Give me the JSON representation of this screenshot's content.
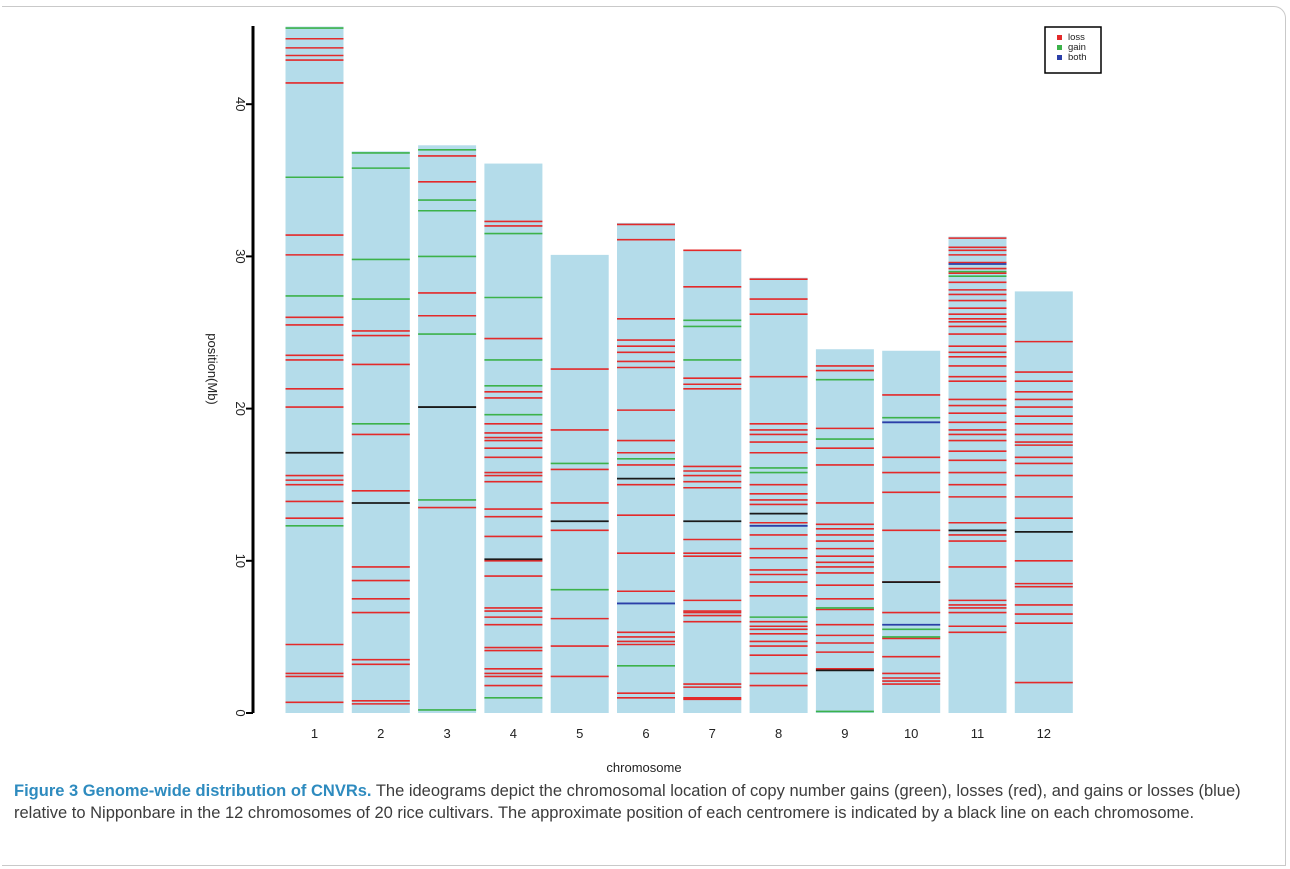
{
  "chart_data": {
    "type": "ideogram",
    "categories": [
      "1",
      "2",
      "3",
      "4",
      "5",
      "6",
      "7",
      "8",
      "9",
      "10",
      "11",
      "12"
    ],
    "chromosome_lengths": [
      45.1,
      36.9,
      37.3,
      36.1,
      30.1,
      32.2,
      30.4,
      28.6,
      23.9,
      23.8,
      31.3,
      27.7
    ],
    "centromeres": [
      17.1,
      13.8,
      20.1,
      10.1,
      12.6,
      15.4,
      12.6,
      13.1,
      2.8,
      8.6,
      12.0,
      11.9
    ],
    "losses": [
      [
        0.7,
        2.4,
        2.6,
        4.5,
        12.8,
        13.9,
        15.0,
        15.3,
        15.6,
        20.1,
        21.3,
        23.2,
        23.5,
        25.5,
        26.0,
        30.1,
        31.4,
        41.4,
        42.9,
        43.2,
        43.7,
        44.3
      ],
      [
        0.6,
        0.8,
        3.2,
        3.5,
        6.6,
        7.5,
        8.7,
        9.6,
        14.6,
        18.3,
        22.9,
        24.8,
        25.1
      ],
      [
        13.5,
        26.1,
        27.6,
        34.9,
        36.6
      ],
      [
        1.8,
        2.4,
        2.6,
        2.9,
        4.1,
        4.3,
        5.8,
        6.3,
        6.7,
        6.9,
        9.0,
        10.0,
        11.6,
        12.9,
        13.4,
        15.2,
        15.6,
        15.8,
        16.8,
        17.4,
        17.9,
        18.1,
        18.4,
        19.0,
        20.7,
        21.1,
        24.6,
        32.0,
        32.3
      ],
      [
        2.4,
        4.4,
        6.2,
        12.0,
        13.8,
        16.0,
        18.6,
        22.6
      ],
      [
        1.0,
        1.3,
        4.5,
        4.7,
        5.0,
        5.3,
        8.0,
        10.5,
        13.0,
        15.0,
        16.3,
        17.1,
        17.9,
        19.9,
        22.7,
        23.1,
        23.7,
        24.1,
        24.5,
        25.9,
        31.1,
        32.1
      ],
      [
        0.9,
        1.0,
        1.7,
        1.9,
        6.0,
        6.4,
        6.6,
        6.7,
        7.4,
        10.3,
        10.5,
        11.4,
        14.8,
        15.2,
        15.6,
        15.9,
        16.2,
        21.3,
        21.6,
        22.0,
        28.0,
        30.4
      ],
      [
        1.8,
        2.6,
        3.8,
        4.4,
        4.7,
        5.2,
        5.5,
        5.7,
        6.0,
        7.7,
        8.6,
        9.1,
        9.4,
        10.2,
        10.8,
        11.7,
        12.5,
        13.7,
        14.0,
        14.4,
        15.0,
        17.1,
        17.8,
        18.3,
        18.6,
        19.0,
        22.1,
        26.2,
        27.2,
        28.5
      ],
      [
        2.9,
        4.0,
        4.6,
        5.1,
        5.8,
        6.8,
        7.5,
        8.4,
        9.2,
        9.6,
        9.9,
        10.3,
        10.8,
        11.3,
        11.7,
        12.1,
        12.4,
        13.8,
        16.3,
        17.4,
        18.7,
        22.5,
        22.8
      ],
      [
        1.9,
        2.1,
        2.3,
        2.6,
        3.7,
        4.9,
        6.6,
        8.6,
        12.0,
        14.5,
        15.8,
        16.8,
        20.9
      ],
      [
        5.3,
        5.7,
        6.6,
        6.9,
        7.1,
        7.4,
        9.6,
        11.3,
        11.7,
        12.0,
        12.5,
        14.2,
        15.0,
        15.8,
        16.6,
        17.2,
        17.9,
        18.3,
        18.6,
        19.1,
        19.7,
        20.2,
        20.6,
        21.8,
        22.1,
        22.8,
        23.4,
        23.7,
        24.1,
        24.9,
        25.4,
        25.7,
        25.9,
        26.2,
        26.6,
        27.1,
        27.5,
        27.8,
        28.3,
        28.9,
        29.2,
        29.6,
        30.1,
        30.4,
        30.6,
        31.2
      ],
      [
        2.0,
        5.9,
        6.5,
        7.1,
        8.3,
        8.5,
        10.0,
        12.8,
        14.2,
        15.6,
        16.4,
        16.8,
        17.6,
        17.8,
        18.3,
        19.0,
        19.5,
        20.1,
        20.6,
        21.1,
        21.8,
        22.4,
        24.4
      ]
    ],
    "gains": [
      [
        12.3,
        27.4,
        35.2,
        45.0
      ],
      [
        19.0,
        27.2,
        29.8,
        35.8,
        36.8
      ],
      [
        0.2,
        14.0,
        24.9,
        30.0,
        33.0,
        33.7,
        37.0
      ],
      [
        1.0,
        19.6,
        21.5,
        23.2,
        27.3,
        31.5
      ],
      [
        8.1,
        16.4
      ],
      [
        3.1,
        16.7
      ],
      [
        23.2,
        25.4,
        25.8
      ],
      [
        6.3,
        15.8,
        16.1
      ],
      [
        0.1,
        6.9,
        18.0,
        21.9
      ],
      [
        5.0,
        5.5,
        19.4
      ],
      [
        28.7,
        29.0
      ],
      []
    ],
    "both": [
      [],
      [],
      [],
      [],
      [],
      [
        7.2
      ],
      [],
      [
        12.3
      ],
      [],
      [
        5.8,
        19.1
      ],
      [
        29.5
      ],
      []
    ],
    "xlabel": "chromosome",
    "ylabel": "position(Mb)",
    "ylim": [
      0,
      45
    ],
    "yticks": [
      0,
      10,
      20,
      30,
      40
    ],
    "legend": [
      {
        "name": "loss",
        "color": "#e32a2a"
      },
      {
        "name": "gain",
        "color": "#3cb24a"
      },
      {
        "name": "both",
        "color": "#2b3fa8"
      }
    ],
    "legend_position": "top-right",
    "colors": {
      "chromosome": "#b4dcea",
      "loss": "#e32a2a",
      "gain": "#3cb24a",
      "both": "#2b3fa8",
      "centromere": "#1a1a1a"
    }
  },
  "caption": {
    "title": "Figure 3 Genome-wide distribution of CNVRs.",
    "body": " The ideograms depict the chromosomal location of copy number gains (green), losses (red), and gains or losses (blue) relative to Nipponbare in the 12 chromosomes of 20 rice cultivars. The approximate position of each centromere is indicated by a black line on each chromosome."
  }
}
